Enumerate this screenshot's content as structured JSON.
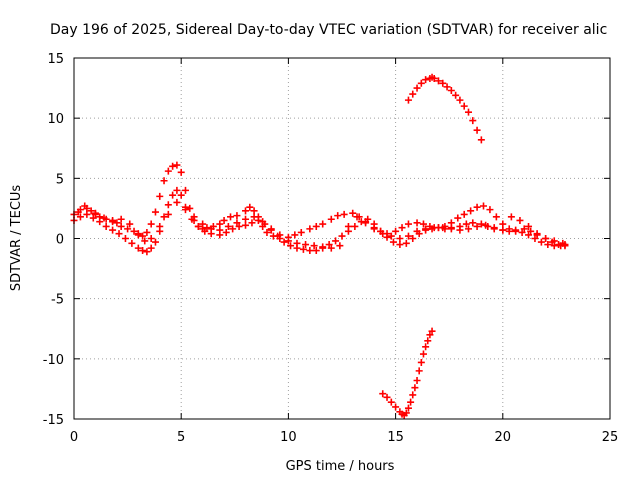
{
  "chart_data": {
    "type": "scatter",
    "title": "Day 196 of 2025, Sidereal Day-to-day VTEC variation (SDTVAR) for receiver alic",
    "xlabel": "GPS time / hours",
    "ylabel": "SDTVAR / TECUs",
    "xlim": [
      0,
      25
    ],
    "ylim": [
      -15,
      15
    ],
    "xticks": [
      0,
      5,
      10,
      15,
      20,
      25
    ],
    "yticks": [
      -15,
      -10,
      -5,
      0,
      5,
      10,
      15
    ],
    "grid": true,
    "marker": "+",
    "color": "#ff0000",
    "series": [
      {
        "x": [
          0.0,
          0.3,
          0.5,
          0.8,
          1.0,
          1.2,
          1.5,
          1.8,
          2.0,
          2.2,
          2.5,
          2.8,
          3.0,
          3.2,
          3.4,
          3.6,
          3.8,
          4.0,
          4.2,
          4.4,
          4.6,
          4.8,
          5.0,
          5.2,
          5.4,
          5.6,
          5.8,
          6.0,
          6.2,
          6.5,
          6.8,
          7.0,
          7.3,
          7.6,
          8.0,
          8.2,
          8.4,
          8.6,
          8.8,
          9.0,
          9.3,
          9.6,
          10.0,
          10.3,
          10.6,
          11.0,
          11.3,
          11.6,
          12.0,
          12.3,
          12.6,
          13.0,
          13.3,
          13.6,
          14.0,
          14.3,
          14.6,
          15.0,
          15.3,
          15.6,
          16.0,
          16.3,
          16.6,
          17.0,
          17.3,
          17.6,
          18.0,
          18.3,
          18.6,
          19.0,
          19.3,
          19.6,
          20.0,
          20.3,
          20.6,
          21.0,
          21.3,
          21.6,
          22.0,
          22.3,
          22.6,
          22.9
        ],
        "y": [
          2.0,
          2.4,
          2.7,
          2.3,
          2.0,
          1.8,
          1.6,
          1.4,
          1.3,
          1.0,
          0.8,
          0.6,
          0.3,
          0.2,
          0.5,
          1.2,
          2.2,
          3.5,
          4.8,
          5.6,
          6.0,
          6.1,
          5.5,
          4.0,
          2.5,
          1.5,
          1.0,
          0.8,
          0.9,
          1.0,
          1.2,
          1.5,
          1.8,
          1.9,
          2.3,
          2.6,
          2.3,
          1.8,
          1.0,
          0.5,
          0.2,
          0.0,
          0.1,
          0.3,
          0.5,
          0.8,
          1.0,
          1.2,
          1.6,
          1.9,
          2.0,
          2.1,
          1.8,
          1.3,
          0.9,
          0.6,
          0.4,
          0.6,
          0.9,
          1.2,
          1.3,
          1.2,
          1.0,
          0.9,
          0.8,
          0.9,
          1.0,
          1.2,
          1.3,
          1.2,
          1.0,
          0.8,
          0.7,
          0.6,
          0.7,
          0.8,
          0.6,
          0.3,
          0.0,
          -0.3,
          -0.5,
          -0.6
        ]
      },
      {
        "x": [
          0.0,
          0.3,
          0.6,
          0.9,
          1.2,
          1.5,
          1.8,
          2.1,
          2.4,
          2.7,
          3.0,
          3.2,
          3.4,
          3.6,
          3.8,
          4.0,
          4.2,
          4.4,
          4.6,
          4.8,
          5.0,
          5.2,
          5.5,
          5.8,
          6.1,
          6.4,
          6.8,
          7.1,
          7.4,
          7.7,
          8.0,
          8.3,
          8.6,
          8.9,
          9.2,
          9.5,
          9.8,
          10.1,
          10.4,
          10.7,
          11.0,
          11.3,
          11.6,
          11.9,
          12.2,
          12.5,
          12.8,
          13.1,
          13.4,
          13.7,
          14.0,
          14.3,
          14.6,
          14.9,
          15.2,
          15.5,
          15.8,
          16.1,
          16.4,
          16.7,
          17.0,
          17.3,
          17.6,
          17.9,
          18.2,
          18.5,
          18.8,
          19.1,
          19.4,
          19.7,
          20.0,
          20.3,
          20.6,
          20.9,
          21.2,
          21.5,
          21.8,
          22.1,
          22.4,
          22.7,
          22.9
        ],
        "y": [
          1.5,
          1.8,
          2.0,
          1.7,
          1.4,
          1.0,
          0.7,
          0.4,
          0.0,
          -0.4,
          -0.8,
          -1.0,
          -1.1,
          -0.8,
          -0.3,
          0.6,
          1.8,
          2.8,
          3.6,
          4.0,
          3.6,
          2.4,
          1.6,
          1.0,
          0.6,
          0.4,
          0.3,
          0.5,
          0.8,
          1.0,
          1.1,
          1.3,
          1.5,
          1.2,
          0.7,
          0.2,
          -0.3,
          -0.6,
          -0.8,
          -0.9,
          -1.0,
          -1.0,
          -0.8,
          -0.5,
          -0.2,
          0.2,
          0.6,
          1.0,
          1.4,
          1.6,
          1.2,
          0.6,
          0.1,
          -0.3,
          -0.5,
          -0.4,
          0.0,
          0.4,
          0.7,
          0.8,
          0.9,
          1.0,
          1.3,
          1.7,
          2.0,
          2.3,
          2.6,
          2.7,
          2.4,
          1.8,
          1.2,
          0.8,
          0.6,
          0.5,
          0.3,
          0.0,
          -0.3,
          -0.5,
          -0.6,
          -0.6,
          -0.5
        ]
      },
      {
        "x": [
          0.2,
          0.6,
          1.0,
          1.4,
          1.8,
          2.2,
          2.6,
          3.0,
          3.3,
          3.6,
          4.0,
          4.4,
          4.8,
          5.2,
          5.6,
          6.0,
          6.4,
          6.8,
          7.2,
          7.6,
          8.0,
          8.4,
          8.8,
          9.2,
          9.6,
          10.0,
          10.4,
          10.8,
          11.2,
          11.6,
          12.0,
          12.4,
          12.8,
          13.2,
          13.6,
          14.0,
          14.4,
          14.8,
          15.2,
          15.6,
          16.0,
          16.4,
          16.8,
          17.2,
          17.6,
          18.0,
          18.4,
          18.8,
          19.2,
          19.6,
          20.0,
          20.4,
          20.8,
          21.2,
          21.6,
          22.0,
          22.4,
          22.8
        ],
        "y": [
          2.2,
          2.5,
          2.1,
          1.7,
          1.5,
          1.6,
          1.2,
          0.4,
          -0.2,
          0.0,
          1.0,
          2.0,
          3.0,
          2.6,
          1.8,
          1.2,
          0.8,
          0.7,
          1.0,
          1.3,
          1.6,
          1.8,
          1.4,
          0.8,
          0.3,
          -0.2,
          -0.4,
          -0.5,
          -0.6,
          -0.7,
          -0.8,
          -0.6,
          1.0,
          1.8,
          1.4,
          0.8,
          0.4,
          0.2,
          0.0,
          0.2,
          0.6,
          0.8,
          0.9,
          0.9,
          0.8,
          0.7,
          0.8,
          1.0,
          1.1,
          0.9,
          0.7,
          1.8,
          1.5,
          1.0,
          0.4,
          0.0,
          -0.2,
          -0.4
        ]
      },
      {
        "x": [
          15.6,
          15.8,
          16.0,
          16.2,
          16.4,
          16.6,
          16.7,
          16.8,
          17.0,
          17.2,
          17.4,
          17.6,
          17.8,
          18.0,
          18.2,
          18.4,
          18.6,
          18.8,
          19.0
        ],
        "y": [
          11.5,
          12.0,
          12.5,
          12.9,
          13.2,
          13.3,
          13.4,
          13.3,
          13.1,
          12.9,
          12.6,
          12.3,
          11.9,
          11.5,
          11.0,
          10.5,
          9.8,
          9.0,
          8.2
        ]
      },
      {
        "x": [
          14.4,
          14.6,
          14.8,
          15.0,
          15.2,
          15.3,
          15.4,
          15.5,
          15.6,
          15.7,
          15.8,
          15.9,
          16.0,
          16.1,
          16.2,
          16.3,
          16.4,
          16.5,
          16.6,
          16.7
        ],
        "y": [
          -12.9,
          -13.2,
          -13.6,
          -14.0,
          -14.4,
          -14.6,
          -14.7,
          -14.5,
          -14.1,
          -13.6,
          -13.0,
          -12.4,
          -11.8,
          -11.0,
          -10.3,
          -9.6,
          -9.0,
          -8.5,
          -8.0,
          -7.7
        ]
      }
    ]
  }
}
